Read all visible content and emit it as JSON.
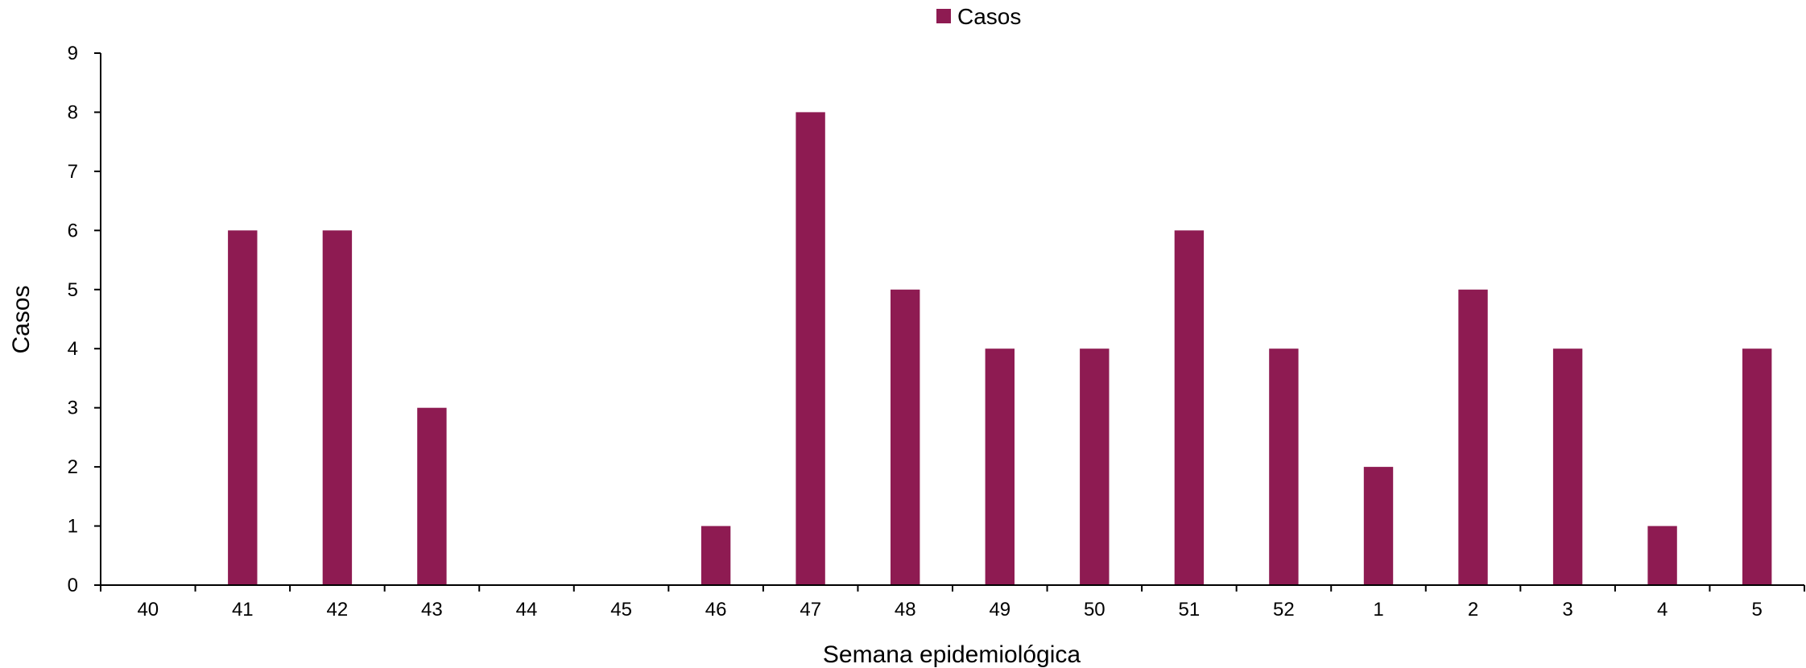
{
  "chart_data": {
    "type": "bar",
    "categories": [
      "40",
      "41",
      "42",
      "43",
      "44",
      "45",
      "46",
      "47",
      "48",
      "49",
      "50",
      "51",
      "52",
      "1",
      "2",
      "3",
      "4",
      "5"
    ],
    "series": [
      {
        "name": "Casos",
        "color": "#8E1B52",
        "values": [
          0,
          6,
          6,
          3,
          0,
          0,
          1,
          8,
          5,
          4,
          4,
          6,
          4,
          2,
          5,
          4,
          1,
          4
        ]
      }
    ],
    "xlabel": "Semana epidemiológica",
    "ylabel": "Casos",
    "ylim": [
      0,
      9
    ],
    "yticks": [
      0,
      1,
      2,
      3,
      4,
      5,
      6,
      7,
      8,
      9
    ],
    "grid": false,
    "legend": {
      "position": "top-center",
      "entries": [
        "Casos"
      ]
    }
  }
}
